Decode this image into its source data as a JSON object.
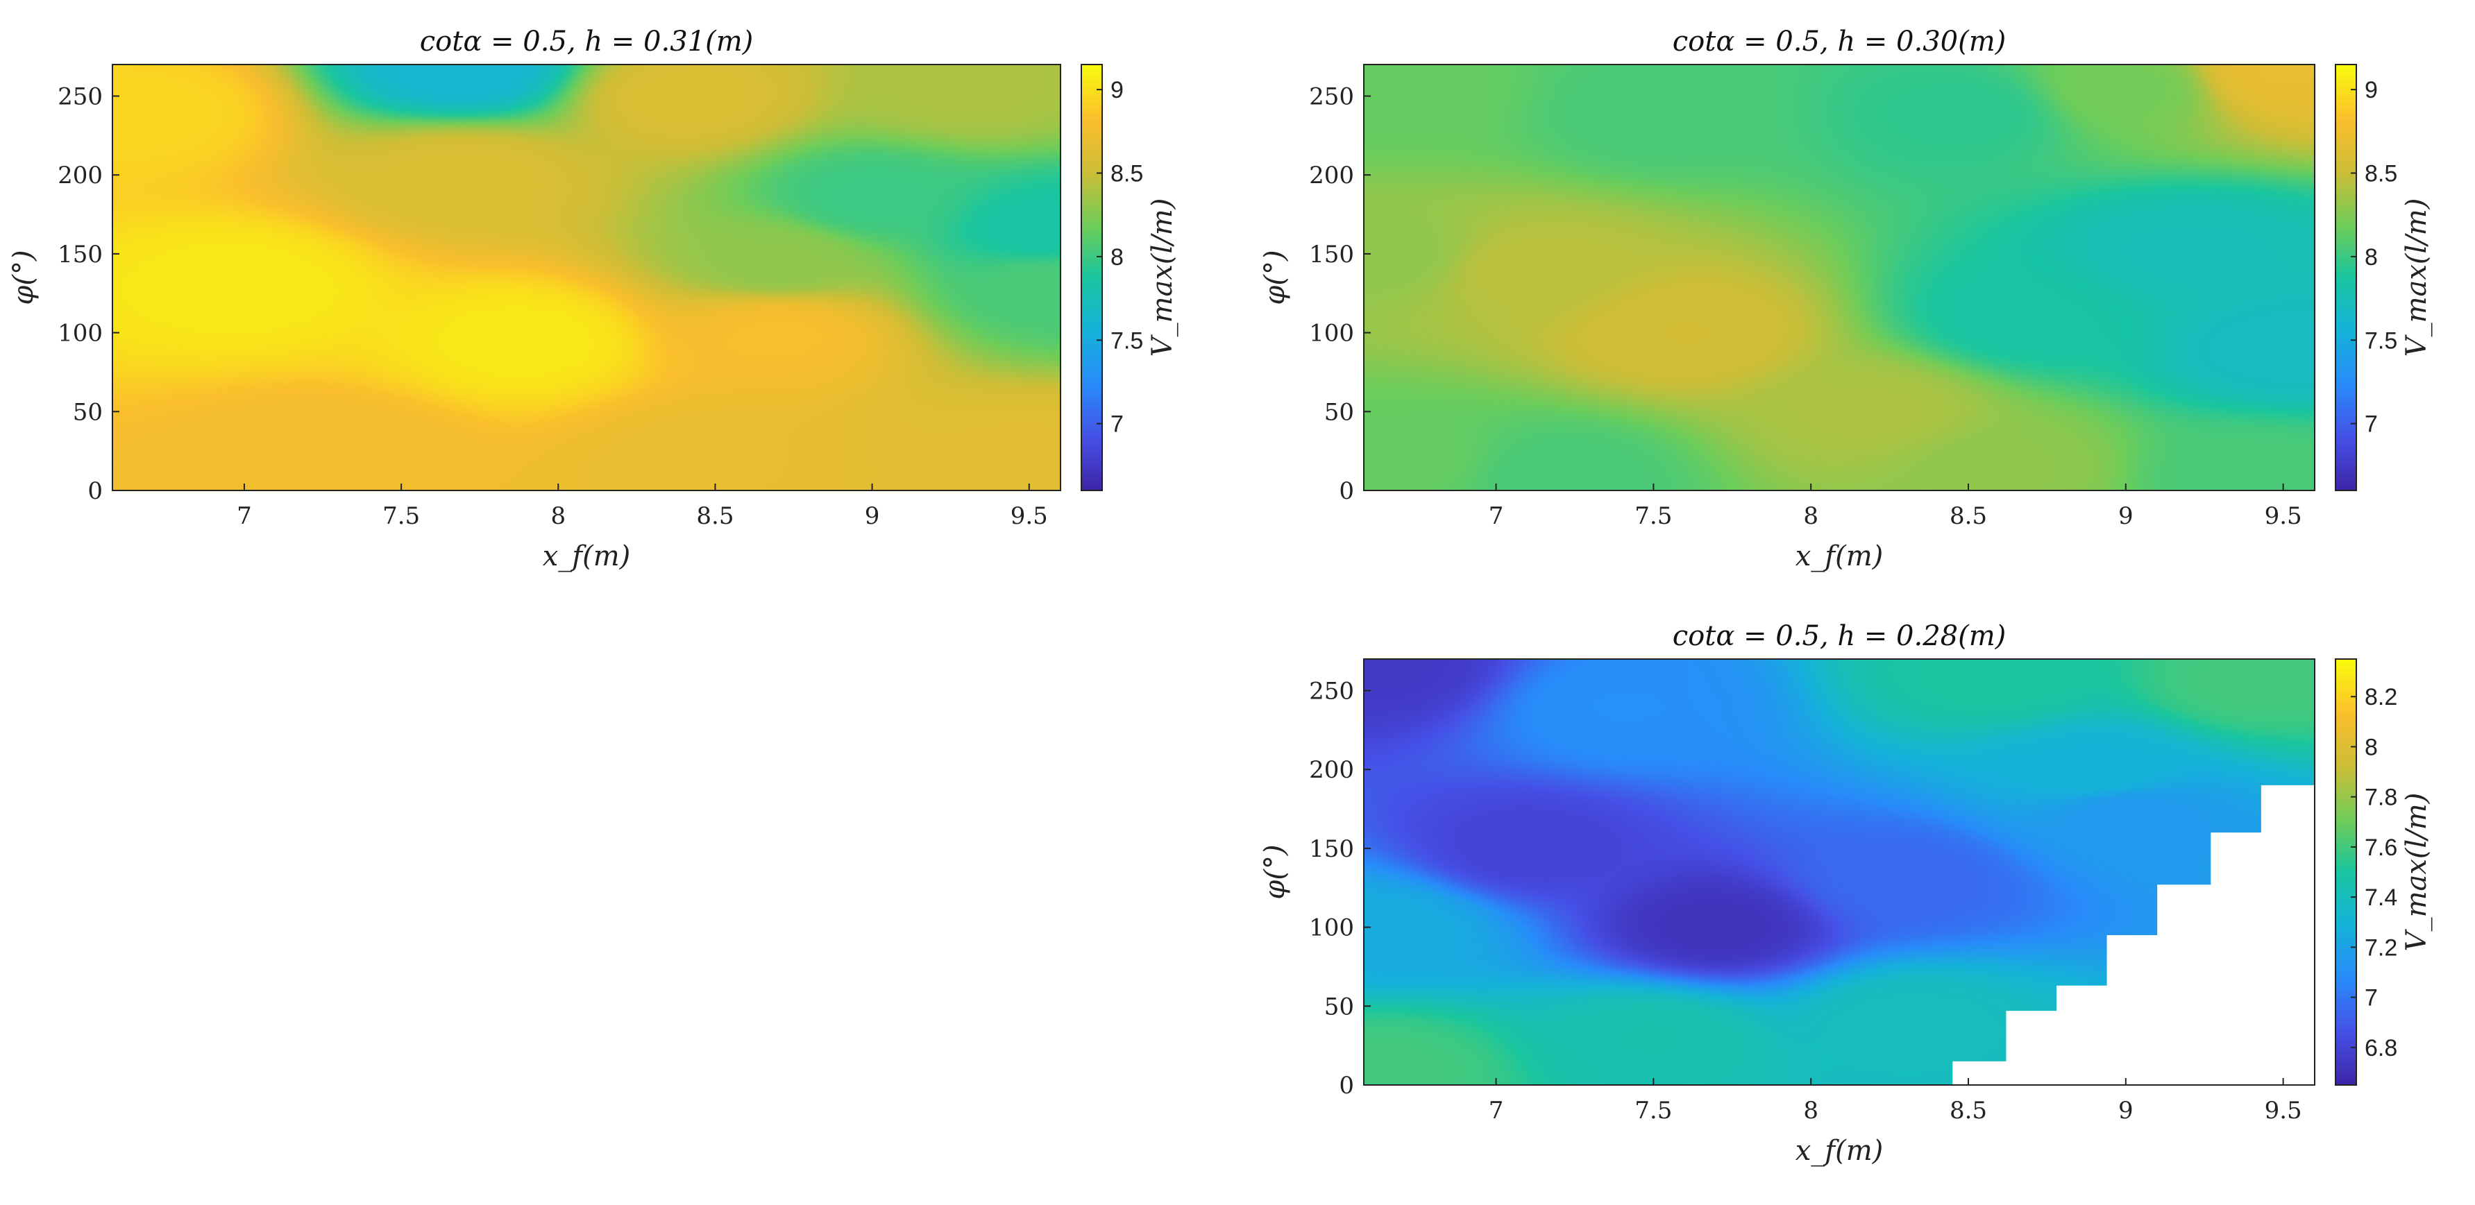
{
  "colormap": "parula",
  "chart_data": [
    {
      "type": "heatmap",
      "title": "cotα = 0.5, h = 0.31(m)",
      "xlabel": "x_f(m)",
      "ylabel": "φ(°)",
      "colorbar_label": "V_max(l/m)",
      "xlim": [
        6.58,
        9.6
      ],
      "ylim": [
        0,
        270
      ],
      "xticks": [
        "7",
        "7.5",
        "8",
        "8.5",
        "9",
        "9.5"
      ],
      "yticks": [
        "0",
        "50",
        "100",
        "150",
        "200",
        "250"
      ],
      "clim": [
        6.6,
        9.15
      ],
      "cbticks": [
        "7",
        "7.5",
        "8",
        "8.5",
        "9"
      ],
      "features": [
        {
          "x": 7.7,
          "y": 268,
          "value": 7.6
        },
        {
          "x": 7.7,
          "y": 200,
          "value": 8.6
        },
        {
          "x": 8.4,
          "y": 250,
          "value": 8.6
        },
        {
          "x": 9.3,
          "y": 255,
          "value": 8.4
        },
        {
          "x": 9.0,
          "y": 185,
          "value": 8.0
        },
        {
          "x": 9.55,
          "y": 165,
          "value": 7.85
        },
        {
          "x": 9.55,
          "y": 130,
          "value": 8.05
        },
        {
          "x": 8.7,
          "y": 145,
          "value": 8.3
        },
        {
          "x": 6.7,
          "y": 240,
          "value": 8.95
        },
        {
          "x": 7.0,
          "y": 130,
          "value": 9.05
        },
        {
          "x": 7.9,
          "y": 95,
          "value": 9.05
        },
        {
          "x": 8.7,
          "y": 100,
          "value": 8.8
        },
        {
          "x": 7.3,
          "y": 20,
          "value": 8.75
        },
        {
          "x": 8.5,
          "y": 20,
          "value": 8.7
        },
        {
          "x": 9.5,
          "y": 20,
          "value": 8.65
        }
      ],
      "mask_steps": []
    },
    {
      "type": "heatmap",
      "title": "cotα = 0.5, h = 0.30(m)",
      "xlabel": "x_f(m)",
      "ylabel": "φ(°)",
      "colorbar_label": "V_max(l/m)",
      "xlim": [
        6.58,
        9.6
      ],
      "ylim": [
        0,
        270
      ],
      "xticks": [
        "7",
        "7.5",
        "8",
        "8.5",
        "9",
        "9.5"
      ],
      "yticks": [
        "0",
        "50",
        "100",
        "150",
        "200",
        "250"
      ],
      "clim": [
        6.6,
        9.15
      ],
      "cbticks": [
        "7",
        "7.5",
        "8",
        "8.5",
        "9"
      ],
      "features": [
        {
          "x": 6.7,
          "y": 250,
          "value": 8.15
        },
        {
          "x": 7.5,
          "y": 240,
          "value": 8.05
        },
        {
          "x": 8.5,
          "y": 240,
          "value": 7.95
        },
        {
          "x": 9.5,
          "y": 265,
          "value": 8.7
        },
        {
          "x": 9.0,
          "y": 255,
          "value": 8.2
        },
        {
          "x": 9.2,
          "y": 150,
          "value": 7.75
        },
        {
          "x": 9.5,
          "y": 90,
          "value": 7.7
        },
        {
          "x": 8.7,
          "y": 110,
          "value": 7.85
        },
        {
          "x": 7.1,
          "y": 140,
          "value": 8.45
        },
        {
          "x": 7.6,
          "y": 100,
          "value": 8.55
        },
        {
          "x": 8.2,
          "y": 50,
          "value": 8.4
        },
        {
          "x": 8.6,
          "y": 15,
          "value": 8.3
        },
        {
          "x": 6.65,
          "y": 150,
          "value": 8.3
        },
        {
          "x": 6.7,
          "y": 20,
          "value": 8.15
        },
        {
          "x": 7.2,
          "y": 10,
          "value": 8.05
        },
        {
          "x": 9.4,
          "y": 10,
          "value": 8.05
        }
      ],
      "mask_steps": []
    },
    {
      "type": "heatmap",
      "title": "cotα = 0.5, h = 0.28(m)",
      "xlabel": "x_f(m)",
      "ylabel": "φ(°)",
      "colorbar_label": "V_max(l/m)",
      "xlim": [
        6.58,
        9.6
      ],
      "ylim": [
        0,
        270
      ],
      "xticks": [
        "7",
        "7.5",
        "8",
        "8.5",
        "9",
        "9.5"
      ],
      "yticks": [
        "0",
        "50",
        "100",
        "150",
        "200",
        "250"
      ],
      "clim": [
        6.65,
        8.35
      ],
      "cbticks": [
        "6.8",
        "7",
        "7.2",
        "7.4",
        "7.6",
        "7.8",
        "8",
        "8.2"
      ],
      "features": [
        {
          "x": 6.65,
          "y": 265,
          "value": 6.75
        },
        {
          "x": 7.4,
          "y": 240,
          "value": 7.1
        },
        {
          "x": 8.6,
          "y": 260,
          "value": 7.5
        },
        {
          "x": 9.4,
          "y": 255,
          "value": 7.6
        },
        {
          "x": 7.1,
          "y": 150,
          "value": 6.8
        },
        {
          "x": 7.7,
          "y": 100,
          "value": 6.72
        },
        {
          "x": 8.3,
          "y": 130,
          "value": 6.95
        },
        {
          "x": 9.0,
          "y": 170,
          "value": 7.15
        },
        {
          "x": 6.65,
          "y": 100,
          "value": 7.25
        },
        {
          "x": 7.5,
          "y": 30,
          "value": 7.45
        },
        {
          "x": 8.3,
          "y": 40,
          "value": 7.4
        },
        {
          "x": 8.9,
          "y": 200,
          "value": 7.3
        },
        {
          "x": 6.65,
          "y": 10,
          "value": 7.6
        }
      ],
      "mask_steps": [
        {
          "x": 8.45,
          "y": 15
        },
        {
          "x": 8.62,
          "y": 47
        },
        {
          "x": 8.78,
          "y": 63
        },
        {
          "x": 8.94,
          "y": 95
        },
        {
          "x": 9.1,
          "y": 127
        },
        {
          "x": 9.27,
          "y": 160
        },
        {
          "x": 9.43,
          "y": 190
        }
      ]
    }
  ]
}
